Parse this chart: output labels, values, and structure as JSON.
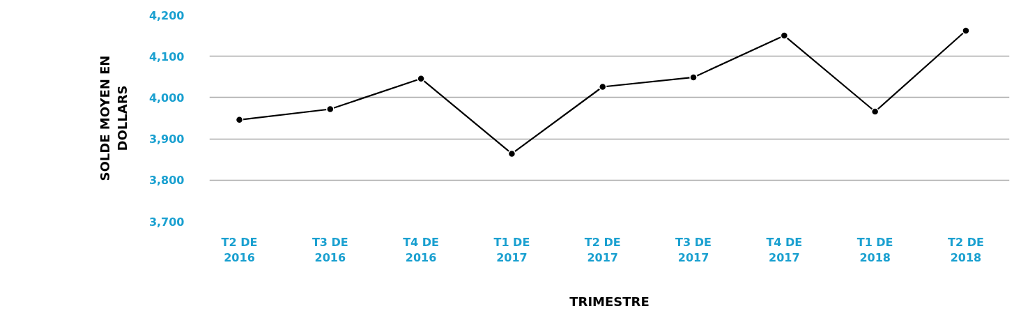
{
  "chart_data": {
    "type": "line",
    "xlabel": "TRIMESTRE",
    "ylabel": "SOLDE MOYEN EN DOLLARS",
    "categories": [
      "T2 DE 2016",
      "T3 DE 2016",
      "T4 DE 2016",
      "T1 DE 2017",
      "T2 DE 2017",
      "T3 DE 2017",
      "T4 DE 2017",
      "T1 DE 2018",
      "T2 DE 2018"
    ],
    "series": [
      {
        "color": "#000000",
        "values": [
          3946,
          3972,
          4046,
          3864,
          4026,
          4049,
          4150,
          3966,
          4162
        ]
      }
    ],
    "ylim": [
      3700,
      4200
    ],
    "yticks": [
      {
        "value": 3700,
        "label": "3,700"
      },
      {
        "value": 3800,
        "label": "3,800"
      },
      {
        "value": 3900,
        "label": "3,900"
      },
      {
        "value": 4000,
        "label": "4,000"
      },
      {
        "value": 4100,
        "label": "4,100"
      },
      {
        "value": 4200,
        "label": "4,200"
      }
    ],
    "grid": "y",
    "marker": "circle",
    "line_style": "solid"
  }
}
